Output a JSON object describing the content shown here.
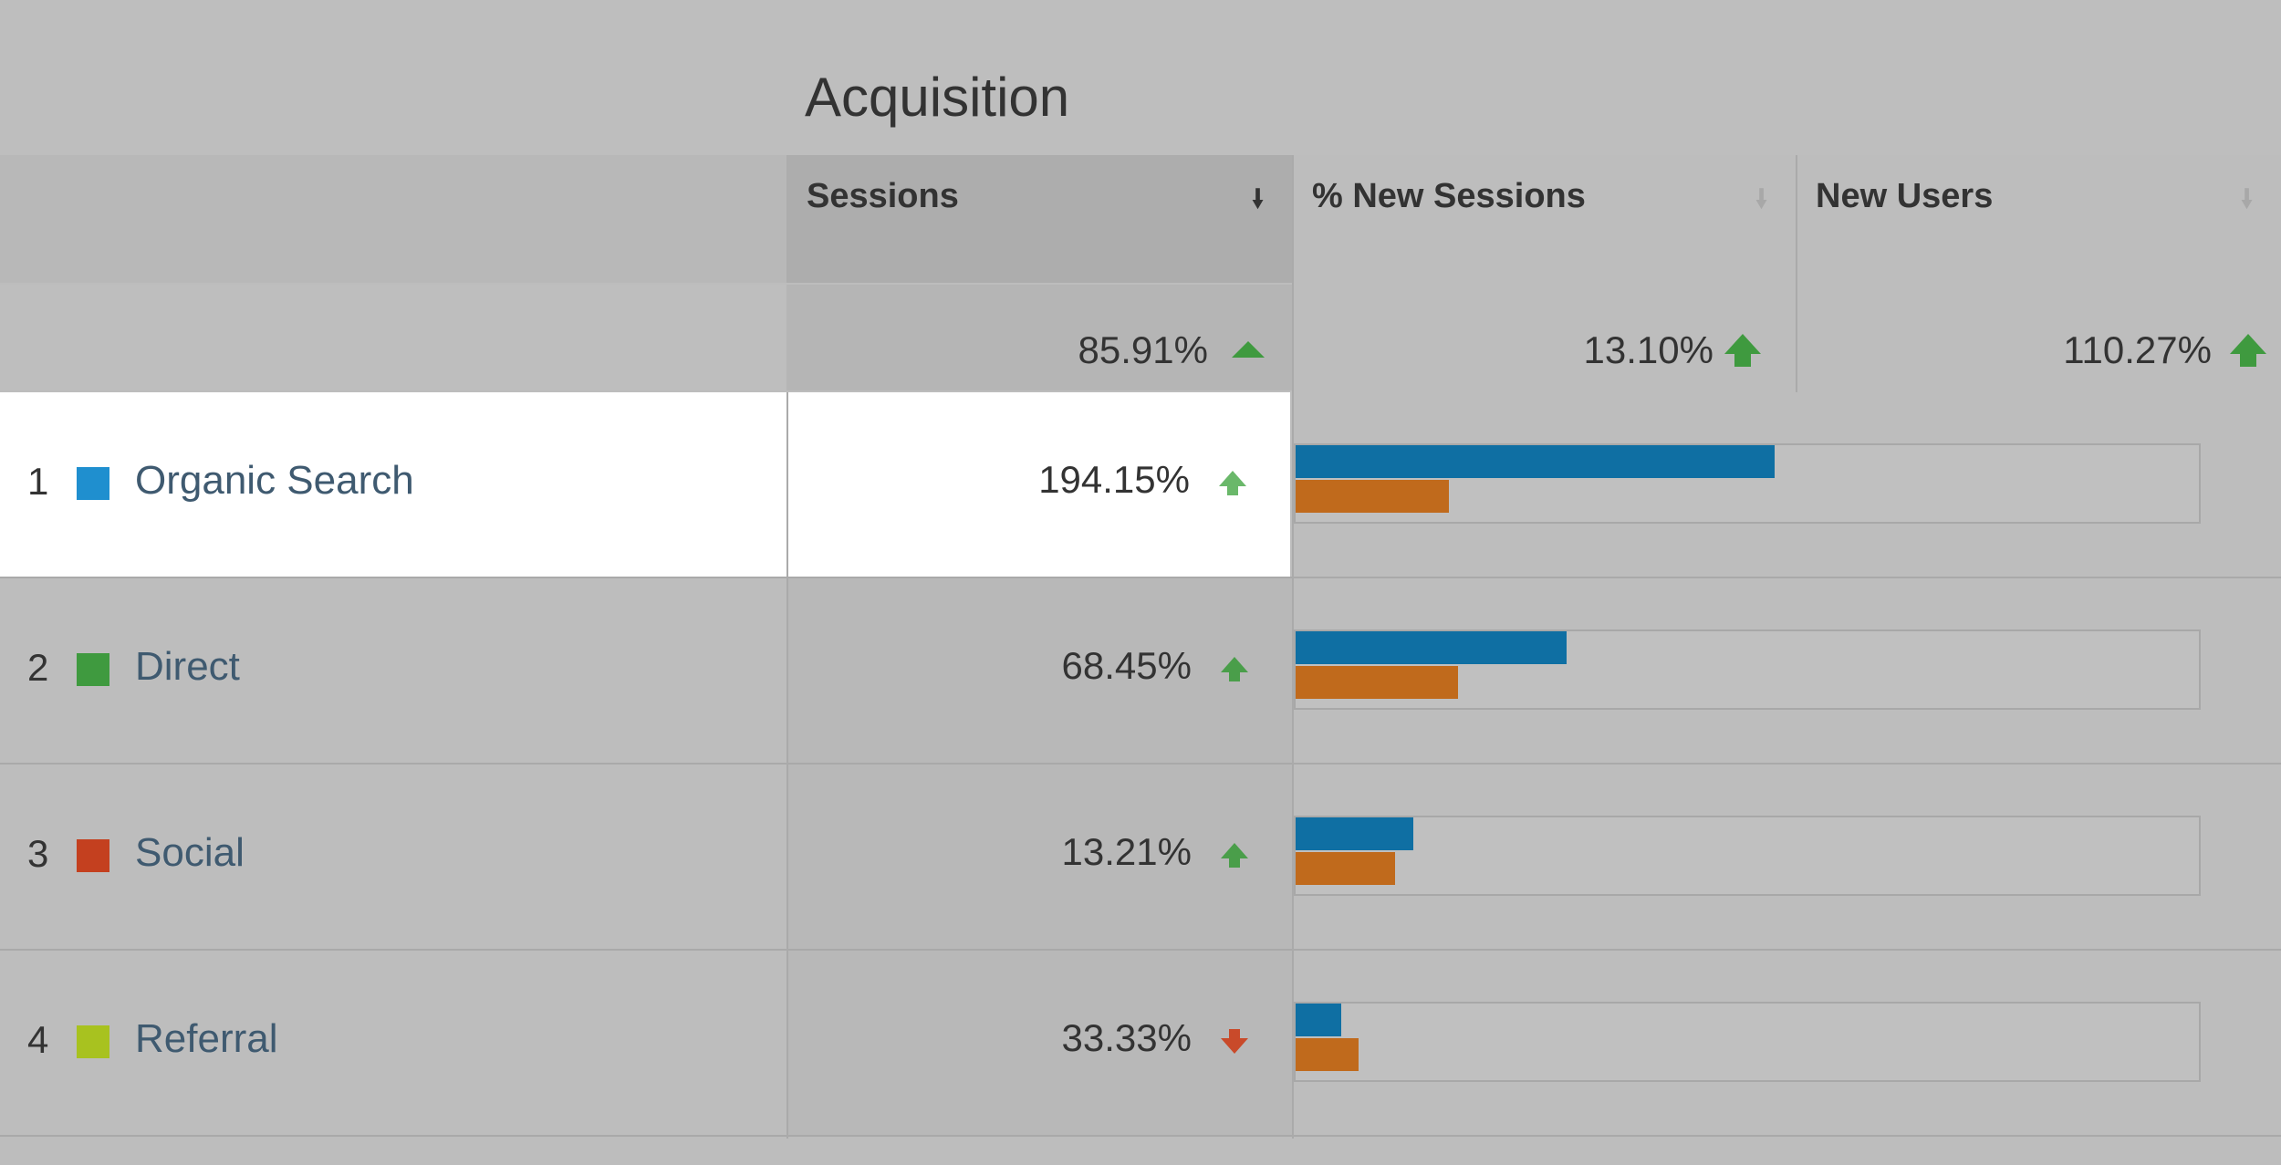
{
  "report": {
    "group_title": "Acquisition",
    "columns": [
      {
        "label": "Sessions",
        "sorted": true
      },
      {
        "label": "% New Sessions",
        "sorted": false
      },
      {
        "label": "New Users",
        "sorted": false
      }
    ],
    "totals": {
      "sessions": "85.91%",
      "new_sessions": "13.10%",
      "new_users": "110.27%",
      "trend": "up"
    },
    "rows": [
      {
        "num": "1",
        "channel": "Organic Search",
        "color": "#1f8fcf",
        "sessions_change": "194.15%",
        "trend": "up",
        "highlighted": true,
        "bar_blue": 0.53,
        "bar_orange": 0.17
      },
      {
        "num": "2",
        "channel": "Direct",
        "color": "#3f9a3f",
        "sessions_change": "68.45%",
        "trend": "up",
        "highlighted": false,
        "bar_blue": 0.3,
        "bar_orange": 0.18
      },
      {
        "num": "3",
        "channel": "Social",
        "color": "#c4401f",
        "sessions_change": "13.21%",
        "trend": "up",
        "highlighted": false,
        "bar_blue": 0.13,
        "bar_orange": 0.11
      },
      {
        "num": "4",
        "channel": "Referral",
        "color": "#a8c21f",
        "sessions_change": "33.33%",
        "trend": "down",
        "highlighted": false,
        "bar_blue": 0.05,
        "bar_orange": 0.07
      }
    ]
  },
  "icons": {
    "sort_active": "sort-desc-icon",
    "sort_inactive": "sort-icon",
    "trend_up": "trend-up-arrow-icon",
    "trend_down": "trend-down-arrow-icon"
  },
  "colors": {
    "bar_blue": "#0f6fa3",
    "bar_orange": "#c06a1c",
    "trend_up": "#3f9a3f",
    "trend_down": "#c94a2a",
    "link": "#3f5a70"
  }
}
